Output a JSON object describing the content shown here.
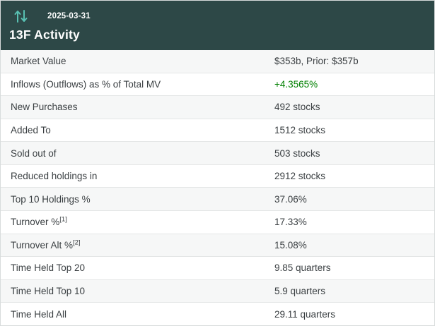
{
  "header": {
    "date": "2025-03-31",
    "title": "13F Activity",
    "bg_color": "#2d4847",
    "icon": "sort-arrows-icon",
    "icon_color": "#58c0b2"
  },
  "colors": {
    "positive_value": "#008000",
    "row_stripe": "#f6f7f7",
    "row_border": "#e4e6e6"
  },
  "table": {
    "rows": [
      {
        "label": "Market Value",
        "sup": "",
        "value": "$353b, Prior: $357b",
        "green": false
      },
      {
        "label": "Inflows (Outflows) as % of Total MV",
        "sup": "",
        "value": "+4.3565%",
        "green": true
      },
      {
        "label": "New Purchases",
        "sup": "",
        "value": "492 stocks",
        "green": false
      },
      {
        "label": "Added To",
        "sup": "",
        "value": "1512 stocks",
        "green": false
      },
      {
        "label": "Sold out of",
        "sup": "",
        "value": "503 stocks",
        "green": false
      },
      {
        "label": "Reduced holdings in",
        "sup": "",
        "value": "2912 stocks",
        "green": false
      },
      {
        "label": "Top 10 Holdings %",
        "sup": "",
        "value": "37.06%",
        "green": false
      },
      {
        "label": "Turnover %",
        "sup": "[1]",
        "value": "17.33%",
        "green": false
      },
      {
        "label": "Turnover Alt %",
        "sup": "[2]",
        "value": "15.08%",
        "green": false
      },
      {
        "label": "Time Held Top 20",
        "sup": "",
        "value": "9.85 quarters",
        "green": false
      },
      {
        "label": "Time Held Top 10",
        "sup": "",
        "value": "5.9 quarters",
        "green": false
      },
      {
        "label": "Time Held All",
        "sup": "",
        "value": "29.11 quarters",
        "green": false
      }
    ]
  }
}
